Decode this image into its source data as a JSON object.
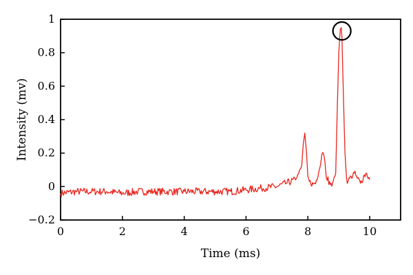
{
  "chart_data": {
    "type": "line",
    "xlabel": "Time (ms)",
    "ylabel": "Intensity (mv)",
    "xlim": [
      0,
      11
    ],
    "ylim": [
      -0.2,
      1.0
    ],
    "xticks": [
      "0",
      "2",
      "4",
      "6",
      "8",
      "10"
    ],
    "xtick_values": [
      0,
      2,
      4,
      6,
      8,
      10
    ],
    "yticks": [
      "−0.2",
      "0",
      "0.2",
      "0.4",
      "0.6",
      "0.8",
      "1"
    ],
    "ytick_values": [
      -0.2,
      0,
      0.2,
      0.4,
      0.6,
      0.8,
      1.0
    ],
    "grid": false,
    "series": [
      {
        "color": "#e8231b",
        "x": [
          0.0,
          0.5,
          1.0,
          1.5,
          2.0,
          2.5,
          3.0,
          3.5,
          4.0,
          4.5,
          5.0,
          5.5,
          6.0,
          6.5,
          7.0,
          7.3,
          7.6,
          7.8,
          7.85,
          7.9,
          7.95,
          8.0,
          8.05,
          8.1,
          8.2,
          8.3,
          8.4,
          8.45,
          8.5,
          8.55,
          8.6,
          8.7,
          8.8,
          8.9,
          8.95,
          9.0,
          9.05,
          9.08,
          9.1,
          9.15,
          9.2,
          9.25,
          9.3,
          9.4,
          9.5,
          9.6,
          9.7,
          9.8,
          9.9,
          10.0
        ],
        "y": [
          -0.04,
          -0.03,
          -0.03,
          -0.03,
          -0.04,
          -0.03,
          -0.03,
          -0.03,
          -0.03,
          -0.03,
          -0.03,
          -0.03,
          -0.02,
          -0.01,
          0.0,
          0.02,
          0.04,
          0.12,
          0.25,
          0.32,
          0.22,
          0.06,
          0.03,
          0.01,
          0.02,
          0.04,
          0.12,
          0.19,
          0.2,
          0.15,
          0.05,
          0.03,
          0.02,
          0.08,
          0.45,
          0.8,
          0.94,
          0.95,
          0.9,
          0.55,
          0.2,
          0.05,
          0.03,
          0.06,
          0.08,
          0.05,
          0.02,
          0.06,
          0.08,
          0.04
        ]
      }
    ],
    "annotations": [
      {
        "type": "circle",
        "x": 9.1,
        "y": 0.93
      }
    ]
  }
}
